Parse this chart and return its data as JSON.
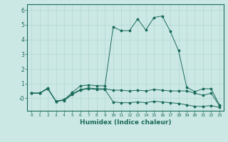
{
  "xlabel": "Humidex (Indice chaleur)",
  "ylabel": "",
  "background_color": "#cce8e4",
  "line_color": "#1a6b5a",
  "grid_color": "#b0d8d0",
  "x_ticks": [
    0,
    1,
    2,
    3,
    4,
    5,
    6,
    7,
    8,
    9,
    10,
    11,
    12,
    13,
    14,
    15,
    16,
    17,
    18,
    19,
    20,
    21,
    22,
    23
  ],
  "y_ticks": [
    0,
    1,
    2,
    3,
    4,
    5,
    6
  ],
  "y_tick_labels": [
    "-0",
    "1",
    "2",
    "3",
    "4",
    "5",
    "6"
  ],
  "ylim": [
    -0.85,
    6.4
  ],
  "xlim": [
    -0.5,
    23.5
  ],
  "series": [
    {
      "x": [
        0,
        1,
        2,
        3,
        4,
        5,
        6,
        7,
        8,
        9,
        10,
        11,
        12,
        13,
        14,
        15,
        16,
        17,
        18,
        19,
        20,
        21,
        22,
        23
      ],
      "y": [
        0.35,
        0.35,
        0.7,
        -0.2,
        -0.1,
        0.4,
        0.85,
        0.9,
        0.85,
        0.85,
        4.85,
        4.6,
        4.6,
        5.4,
        4.65,
        5.5,
        5.6,
        4.55,
        3.25,
        0.75,
        0.45,
        0.65,
        0.65,
        -0.45
      ]
    },
    {
      "x": [
        0,
        1,
        2,
        3,
        4,
        5,
        6,
        7,
        8,
        9,
        10,
        11,
        12,
        13,
        14,
        15,
        16,
        17,
        18,
        19,
        20,
        21,
        22,
        23
      ],
      "y": [
        0.35,
        0.35,
        0.65,
        -0.2,
        -0.1,
        0.3,
        0.6,
        0.7,
        0.65,
        0.65,
        0.55,
        0.55,
        0.5,
        0.55,
        0.5,
        0.6,
        0.55,
        0.5,
        0.5,
        0.5,
        0.35,
        0.2,
        0.35,
        -0.5
      ]
    },
    {
      "x": [
        0,
        1,
        2,
        3,
        4,
        5,
        6,
        7,
        8,
        9,
        10,
        11,
        12,
        13,
        14,
        15,
        16,
        17,
        18,
        19,
        20,
        21,
        22,
        23
      ],
      "y": [
        0.35,
        0.35,
        0.65,
        -0.2,
        -0.15,
        0.25,
        0.55,
        0.65,
        0.6,
        0.6,
        -0.25,
        -0.3,
        -0.3,
        -0.25,
        -0.3,
        -0.2,
        -0.25,
        -0.3,
        -0.35,
        -0.45,
        -0.55,
        -0.55,
        -0.5,
        -0.62
      ]
    }
  ]
}
